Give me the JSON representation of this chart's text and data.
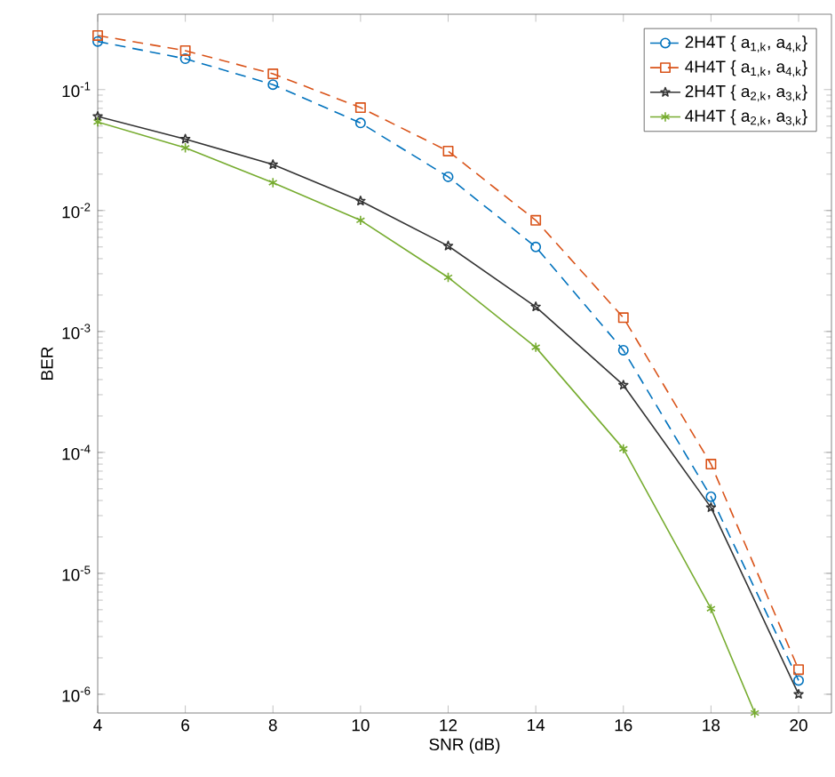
{
  "chart_data": {
    "type": "line",
    "xlabel": "SNR (dB)",
    "ylabel": "BER",
    "log": "y",
    "grid": false,
    "legend": "top right",
    "x": [
      4,
      6,
      8,
      10,
      12,
      14,
      16,
      18,
      20
    ],
    "xlim": [
      4,
      20.75
    ],
    "xticks": [
      4,
      6,
      8,
      10,
      12,
      14,
      16,
      18,
      20
    ],
    "ylim": [
      7e-07,
      0.42
    ],
    "yticks": [
      {
        "value": 1e-06,
        "label": "10$^{-6}$"
      },
      {
        "value": 1e-05,
        "label": "10$^{-5}$"
      },
      {
        "value": 0.0001,
        "label": "10$^{-4}$"
      },
      {
        "value": 0.001,
        "label": "10$^{-3}$"
      },
      {
        "value": 0.01,
        "label": "10$^{-2}$"
      },
      {
        "value": 0.1,
        "label": "10$^{-1}$"
      }
    ],
    "series": [
      {
        "name": "2H4T { a$_{1,k}$, a$_{4,k}$}",
        "color": "#0072bd",
        "marker": "circle",
        "line_style": "dashed",
        "values": [
          0.25,
          0.18,
          0.11,
          0.053,
          0.019,
          0.005,
          0.0007,
          4.3e-05,
          1.3e-06
        ]
      },
      {
        "name": "4H4T { a$_{1,k}$, a$_{4,k}$}",
        "color": "#d95319",
        "marker": "square",
        "line_style": "dashed",
        "values": [
          0.28,
          0.21,
          0.135,
          0.071,
          0.031,
          0.0083,
          0.0013,
          8e-05,
          1.6e-06
        ]
      },
      {
        "name": "2H4T { a$_{2,k}$, a$_{3,k}$}",
        "color": "#333333",
        "marker": "star",
        "line_style": "solid",
        "values": [
          0.06,
          0.039,
          0.024,
          0.012,
          0.0051,
          0.0016,
          0.00036,
          3.5e-05,
          1e-06
        ]
      },
      {
        "name": "4H4T { a$_{2,k}$, a$_{3,k}$}",
        "color": "#77ac30",
        "marker": "cross",
        "line_style": "solid",
        "x": [
          4,
          6,
          8,
          10,
          12,
          14,
          16,
          18,
          19
        ],
        "values": [
          0.054,
          0.033,
          0.017,
          0.0083,
          0.0028,
          0.00074,
          0.000107,
          5.1e-06,
          7e-07
        ]
      }
    ]
  }
}
